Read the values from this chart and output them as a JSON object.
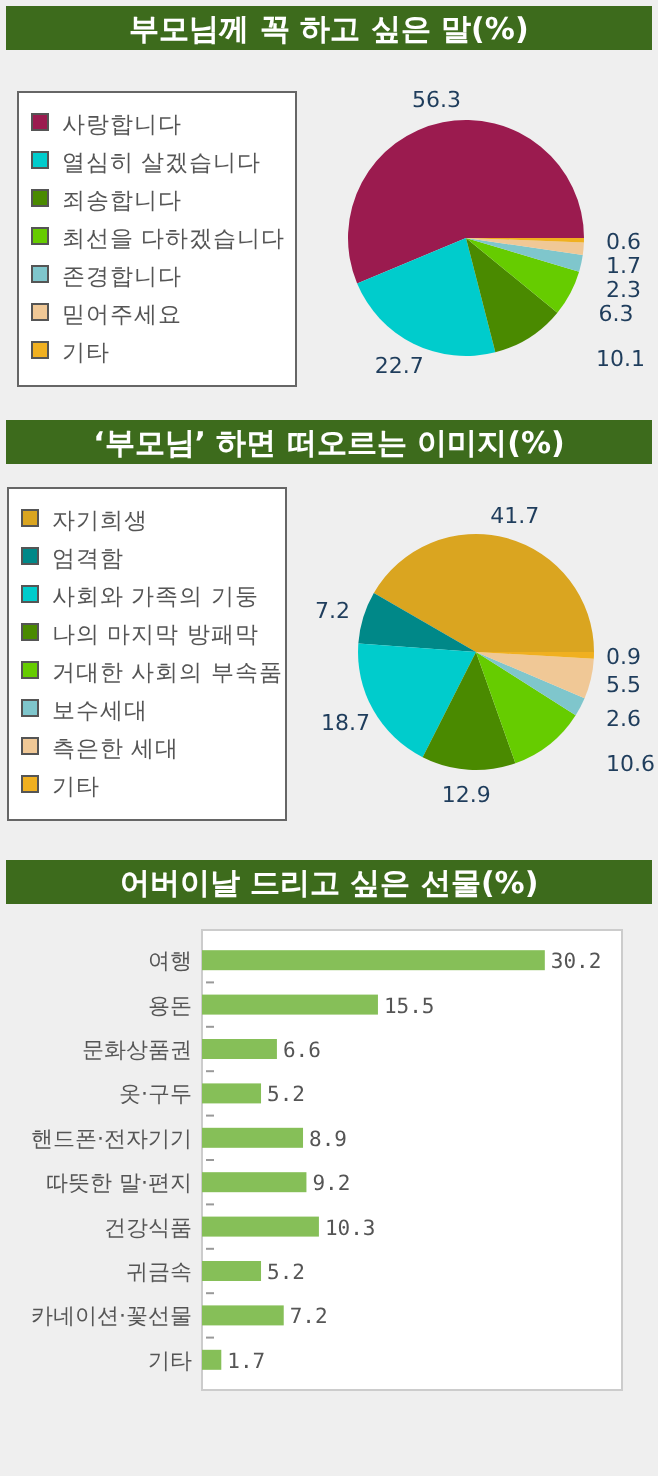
{
  "chart_data": [
    {
      "type": "pie",
      "title": "부모님께 꼭 하고 싶은 말(%)",
      "legend": "left",
      "data_labels": true,
      "categories": [
        "사랑합니다",
        "열심히 살겠습니다",
        "죄송합니다",
        "최선을 다하겠습니다",
        "존경합니다",
        "믿어주세요",
        "기타"
      ],
      "values": [
        56.3,
        22.7,
        10.1,
        6.3,
        2.3,
        1.7,
        0.6
      ],
      "colors": [
        "#9b1b4f",
        "#00cccc",
        "#4a8a00",
        "#66cc00",
        "#7fc6cc",
        "#f0c896",
        "#f0b020"
      ]
    },
    {
      "type": "pie",
      "title": "‘부모님’ 하면 떠오르는 이미지(%)",
      "legend": "left",
      "data_labels": true,
      "categories": [
        "자기희생",
        "엄격함",
        "사회와 가족의 기둥",
        "나의 마지막 방패막",
        "거대한 사회의 부속품",
        "보수세대",
        "측은한 세대",
        "기타"
      ],
      "values": [
        41.7,
        7.2,
        18.7,
        12.9,
        10.6,
        2.6,
        5.5,
        0.9
      ],
      "colors": [
        "#daa520",
        "#008888",
        "#00cccc",
        "#4a8a00",
        "#66cc00",
        "#7fc6cc",
        "#f0c896",
        "#f0b020"
      ]
    },
    {
      "type": "bar",
      "title": "어버이날 드리고 싶은 선물(%)",
      "orientation": "horizontal",
      "data_labels": true,
      "tick_labels": "y",
      "xlim": [
        0,
        37
      ],
      "categories": [
        "여행",
        "용돈",
        "문화상품권",
        "옷·구두",
        "핸드폰·전자기기",
        "따뜻한 말·편지",
        "건강식품",
        "귀금속",
        "카네이션·꽃선물",
        "기타"
      ],
      "values": [
        30.2,
        15.5,
        6.6,
        5.2,
        8.9,
        9.2,
        10.3,
        5.2,
        7.2,
        1.7
      ],
      "color": "#86bf58"
    }
  ]
}
